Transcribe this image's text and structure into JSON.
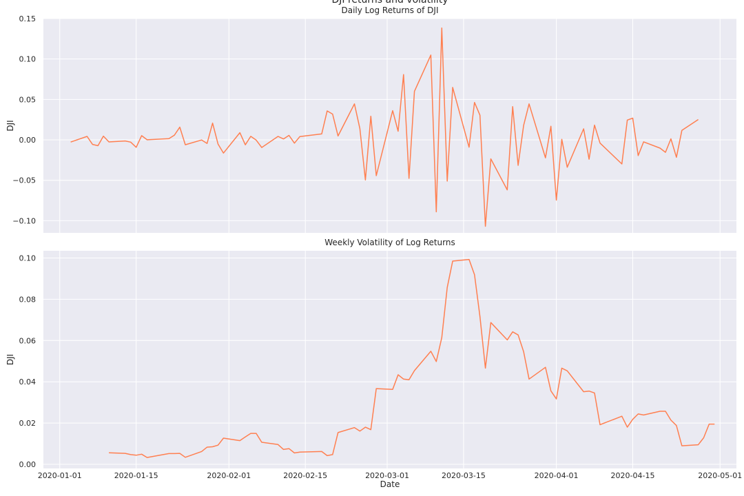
{
  "figure": {
    "suptitle": "DJI returns and volatility",
    "line_color": "#FF7F50",
    "panel_bg": "#EAEAF2",
    "grid_color": "#FFFFFF"
  },
  "chart_data": [
    {
      "type": "line",
      "title": "Daily Log Returns of DJI",
      "xlabel": "",
      "ylabel": "DJI",
      "ylim": [
        -0.115,
        0.15
      ],
      "yticks": [
        -0.1,
        -0.05,
        0.0,
        0.05,
        0.1,
        0.15
      ],
      "ytick_labels": [
        "−0.10",
        "−0.05",
        "0.00",
        "0.05",
        "0.10",
        "0.15"
      ],
      "grid": true,
      "series": [
        {
          "x": [
            "2020-01-03",
            "2020-01-06",
            "2020-01-07",
            "2020-01-08",
            "2020-01-09",
            "2020-01-10",
            "2020-01-13",
            "2020-01-14",
            "2020-01-15",
            "2020-01-16",
            "2020-01-17",
            "2020-01-21",
            "2020-01-22",
            "2020-01-23",
            "2020-01-24",
            "2020-01-27",
            "2020-01-28",
            "2020-01-29",
            "2020-01-30",
            "2020-01-31",
            "2020-02-03",
            "2020-02-04",
            "2020-02-05",
            "2020-02-06",
            "2020-02-07",
            "2020-02-10",
            "2020-02-11",
            "2020-02-12",
            "2020-02-13",
            "2020-02-14",
            "2020-02-18",
            "2020-02-19",
            "2020-02-20",
            "2020-02-21",
            "2020-02-24",
            "2020-02-25",
            "2020-02-26",
            "2020-02-27",
            "2020-02-28",
            "2020-03-02",
            "2020-03-03",
            "2020-03-04",
            "2020-03-05",
            "2020-03-06",
            "2020-03-09",
            "2020-03-10",
            "2020-03-11",
            "2020-03-12",
            "2020-03-13",
            "2020-03-16",
            "2020-03-17",
            "2020-03-18",
            "2020-03-19",
            "2020-03-20",
            "2020-03-23",
            "2020-03-24",
            "2020-03-25",
            "2020-03-26",
            "2020-03-27",
            "2020-03-30",
            "2020-03-31",
            "2020-04-01",
            "2020-04-02",
            "2020-04-03",
            "2020-04-06",
            "2020-04-07",
            "2020-04-08",
            "2020-04-09",
            "2020-04-13",
            "2020-04-14",
            "2020-04-15",
            "2020-04-16",
            "2020-04-17",
            "2020-04-20",
            "2020-04-21",
            "2020-04-22",
            "2020-04-23",
            "2020-04-24",
            "2020-04-27",
            "2020-04-28",
            "2020-04-29",
            "2020-04-30"
          ],
          "y": [
            -0.0027,
            0.0043,
            -0.0056,
            -0.0072,
            0.0046,
            -0.0025,
            -0.0013,
            -0.0028,
            -0.0092,
            0.0052,
            0.0001,
            0.0015,
            0.0057,
            0.0157,
            -0.006,
            -0.0001,
            -0.0044,
            0.0207,
            -0.0052,
            -0.0163,
            0.0089,
            -0.0061,
            0.0044,
            -0.0003,
            -0.0094,
            0.0043,
            0.0011,
            0.0056,
            -0.0041,
            0.0041,
            0.0074,
            0.0358,
            0.0319,
            0.0048,
            0.0445,
            0.0139,
            -0.0496,
            0.0293,
            -0.0443,
            0.0362,
            0.0107,
            0.0807,
            -0.0476,
            0.06,
            0.1049,
            -0.089,
            0.1384,
            -0.051,
            0.0649,
            -0.0091,
            0.0463,
            0.0305,
            -0.1069,
            -0.0235,
            -0.0618,
            0.0411,
            -0.0315,
            0.0178,
            0.0445,
            -0.0222,
            0.0168,
            -0.0745,
            0.0007,
            -0.0339,
            0.0137,
            -0.0239,
            0.0183,
            -0.004,
            -0.0298,
            0.0245,
            0.0269,
            -0.0195,
            -0.0024,
            -0.0102,
            -0.0154,
            0.0013,
            -0.0215,
            0.0117,
            0.0252,
            0.0252,
            0.0252,
            0.0252
          ],
          "ytrim": 79
        }
      ]
    },
    {
      "type": "line",
      "title": "Weekly Volatility of Log Returns",
      "xlabel": "Date",
      "ylabel": "DJI",
      "ylim": [
        -0.002,
        0.1035
      ],
      "yticks": [
        0.0,
        0.02,
        0.04,
        0.06,
        0.08,
        0.1
      ],
      "ytick_labels": [
        "0.00",
        "0.02",
        "0.04",
        "0.06",
        "0.08",
        "0.10"
      ],
      "grid": true,
      "series": [
        {
          "x": [
            "2020-01-10",
            "2020-01-13",
            "2020-01-14",
            "2020-01-15",
            "2020-01-16",
            "2020-01-17",
            "2020-01-21",
            "2020-01-22",
            "2020-01-23",
            "2020-01-24",
            "2020-01-27",
            "2020-01-28",
            "2020-01-29",
            "2020-01-30",
            "2020-01-31",
            "2020-02-03",
            "2020-02-04",
            "2020-02-05",
            "2020-02-06",
            "2020-02-07",
            "2020-02-10",
            "2020-02-11",
            "2020-02-12",
            "2020-02-13",
            "2020-02-14",
            "2020-02-18",
            "2020-02-19",
            "2020-02-20",
            "2020-02-21",
            "2020-02-24",
            "2020-02-25",
            "2020-02-26",
            "2020-02-27",
            "2020-02-28",
            "2020-03-02",
            "2020-03-03",
            "2020-03-04",
            "2020-03-05",
            "2020-03-06",
            "2020-03-09",
            "2020-03-10",
            "2020-03-11",
            "2020-03-12",
            "2020-03-13",
            "2020-03-16",
            "2020-03-17",
            "2020-03-18",
            "2020-03-19",
            "2020-03-20",
            "2020-03-23",
            "2020-03-24",
            "2020-03-25",
            "2020-03-26",
            "2020-03-27",
            "2020-03-30",
            "2020-03-31",
            "2020-04-01",
            "2020-04-02",
            "2020-04-03",
            "2020-04-06",
            "2020-04-07",
            "2020-04-08",
            "2020-04-09",
            "2020-04-13",
            "2020-04-14",
            "2020-04-15",
            "2020-04-16",
            "2020-04-17",
            "2020-04-20",
            "2020-04-21",
            "2020-04-22",
            "2020-04-23",
            "2020-04-24",
            "2020-04-27",
            "2020-04-28",
            "2020-04-29",
            "2020-04-30"
          ],
          "y": [
            0.0056,
            0.0053,
            0.0047,
            0.0044,
            0.0049,
            0.0033,
            0.0052,
            0.0052,
            0.0053,
            0.0034,
            0.0062,
            0.0083,
            0.0085,
            0.0093,
            0.0127,
            0.0115,
            0.0133,
            0.015,
            0.015,
            0.0107,
            0.0096,
            0.0072,
            0.0076,
            0.0055,
            0.0059,
            0.0062,
            0.0042,
            0.0047,
            0.0154,
            0.0178,
            0.0161,
            0.018,
            0.0168,
            0.0367,
            0.0363,
            0.0434,
            0.0413,
            0.041,
            0.0454,
            0.0548,
            0.0498,
            0.0614,
            0.0857,
            0.0985,
            0.0993,
            0.0919,
            0.0716,
            0.0466,
            0.0687,
            0.0603,
            0.0642,
            0.0627,
            0.0546,
            0.0413,
            0.047,
            0.0356,
            0.0317,
            0.0466,
            0.0453,
            0.0352,
            0.0355,
            0.0346,
            0.0192,
            0.0233,
            0.018,
            0.0218,
            0.0244,
            0.0239,
            0.0257,
            0.0257,
            0.0214,
            0.0188,
            0.009,
            0.0095,
            0.0129,
            0.0195,
            0.0195
          ]
        }
      ]
    }
  ],
  "x_axis": {
    "min": "2019-12-29",
    "max": "2020-05-04",
    "ticks": [
      "2020-01-01",
      "2020-01-15",
      "2020-02-01",
      "2020-02-15",
      "2020-03-01",
      "2020-03-15",
      "2020-04-01",
      "2020-04-15",
      "2020-05-01"
    ],
    "tick_labels": [
      "2020-01-01",
      "2020-01-15",
      "2020-02-01",
      "2020-02-15",
      "2020-03-01",
      "2020-03-15",
      "2020-04-01",
      "2020-04-15",
      "2020-05-01"
    ]
  }
}
